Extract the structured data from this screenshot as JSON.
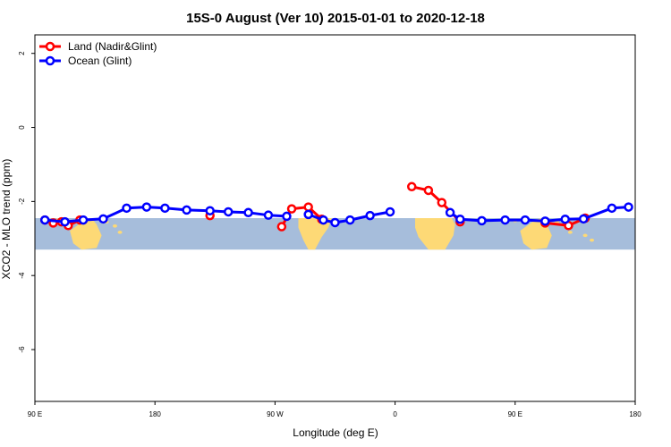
{
  "chart_data": {
    "type": "line",
    "title": "15S-0 August (Ver 10)   2015-01-01 to 2020-12-18",
    "xlabel": "Longitude (deg E)",
    "ylabel": "XCO2 - MLO trend (ppm)",
    "xlim": [
      90,
      450
    ],
    "ylim": [
      -7.4,
      2.5
    ],
    "x_ticks": [
      {
        "value": 90,
        "label": "90 E"
      },
      {
        "value": 162,
        "label": "180"
      },
      {
        "value": 234,
        "label": "90 W"
      },
      {
        "value": 306,
        "label": "0"
      },
      {
        "value": 378,
        "label": "90 E"
      },
      {
        "value": 450,
        "label": "180"
      }
    ],
    "y_ticks": [
      {
        "value": 2,
        "label": "2"
      },
      {
        "value": 0,
        "label": "0"
      },
      {
        "value": -2,
        "label": "-2"
      },
      {
        "value": -4,
        "label": "-4"
      },
      {
        "value": -6,
        "label": "-6"
      }
    ],
    "map_band": {
      "ymin": -3.3,
      "ymax": -2.45,
      "ocean_color": "#a6bddb",
      "land_color": "#fdd976"
    },
    "legend_position": "top-left",
    "series": [
      {
        "name": "Land (Nadir&Glint)",
        "color": "#ff0000",
        "segments": [
          [
            [
              96,
              -2.5
            ],
            [
              101,
              -2.58
            ],
            [
              106,
              -2.55
            ],
            [
              110,
              -2.65
            ],
            [
              117,
              -2.5
            ]
          ],
          [
            [
              195,
              -2.38
            ]
          ],
          [
            [
              238,
              -2.68
            ],
            [
              244,
              -2.2
            ],
            [
              254,
              -2.15
            ],
            [
              262,
              -2.48
            ]
          ],
          [
            [
              316,
              -1.6
            ],
            [
              326,
              -1.7
            ],
            [
              334,
              -2.03
            ],
            [
              345,
              -2.55
            ]
          ],
          [
            [
              396,
              -2.58
            ],
            [
              410,
              -2.65
            ],
            [
              420,
              -2.45
            ]
          ]
        ]
      },
      {
        "name": "Ocean (Glint)",
        "color": "#0000ff",
        "segments": [
          [
            [
              96,
              -2.5
            ],
            [
              108,
              -2.55
            ],
            [
              119,
              -2.5
            ],
            [
              131,
              -2.47
            ],
            [
              145,
              -2.18
            ],
            [
              157,
              -2.15
            ],
            [
              168,
              -2.18
            ],
            [
              181,
              -2.23
            ],
            [
              195,
              -2.25
            ],
            [
              206,
              -2.28
            ],
            [
              218,
              -2.3
            ],
            [
              230,
              -2.37
            ],
            [
              241,
              -2.4
            ]
          ],
          [
            [
              254,
              -2.35
            ],
            [
              263,
              -2.5
            ],
            [
              270,
              -2.57
            ],
            [
              279,
              -2.5
            ],
            [
              291,
              -2.38
            ],
            [
              303,
              -2.28
            ]
          ],
          [
            [
              339,
              -2.3
            ],
            [
              345,
              -2.48
            ],
            [
              358,
              -2.52
            ],
            [
              372,
              -2.5
            ],
            [
              384,
              -2.5
            ],
            [
              396,
              -2.53
            ],
            [
              408,
              -2.48
            ],
            [
              419,
              -2.47
            ],
            [
              436,
              -2.18
            ],
            [
              446,
              -2.15
            ]
          ]
        ]
      }
    ]
  }
}
